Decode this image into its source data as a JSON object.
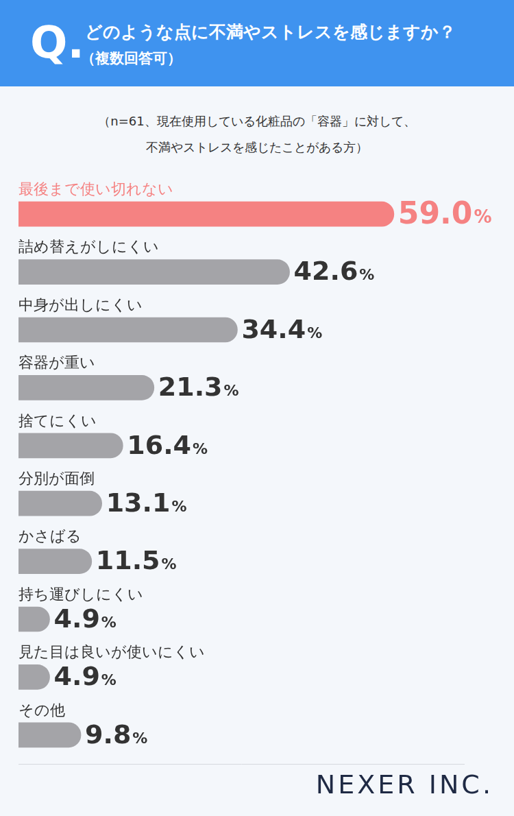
{
  "chart_data": {
    "type": "bar",
    "orientation": "horizontal",
    "title_mark": "Q.",
    "title": "どのような点に不満やストレスを感じますか？",
    "subtitle": "（複数回答可）",
    "annotations": [
      "（n=61、現在使用している化粧品の「容器」に対して、",
      "不満やストレスを感じたことがある方）"
    ],
    "source": "NEXER INC.",
    "categories": [
      "最後まで使い切れない",
      "詰め替えがしにくい",
      "中身が出しにくい",
      "容器が重い",
      "捨てにくい",
      "分別が面倒",
      "かさばる",
      "持ち運びしにくい",
      "見た目は良いが使いにくい",
      "その他"
    ],
    "values": [
      59.0,
      42.6,
      34.4,
      21.3,
      16.4,
      13.1,
      11.5,
      4.9,
      4.9,
      9.8
    ],
    "value_labels": [
      "59.0%",
      "42.6%",
      "34.4%",
      "21.3%",
      "16.4%",
      "13.1%",
      "11.5%",
      "4.9%",
      "4.9%",
      "9.8%"
    ],
    "colors": [
      "#f58282",
      "#a4a4a8",
      "#a4a4a8",
      "#a4a4a8",
      "#a4a4a8",
      "#a4a4a8",
      "#a4a4a8",
      "#a4a4a8",
      "#a4a4a8",
      "#a4a4a8"
    ],
    "xlim": [
      0,
      70
    ],
    "grid": false,
    "data_labels": true,
    "tick_labels": false
  }
}
